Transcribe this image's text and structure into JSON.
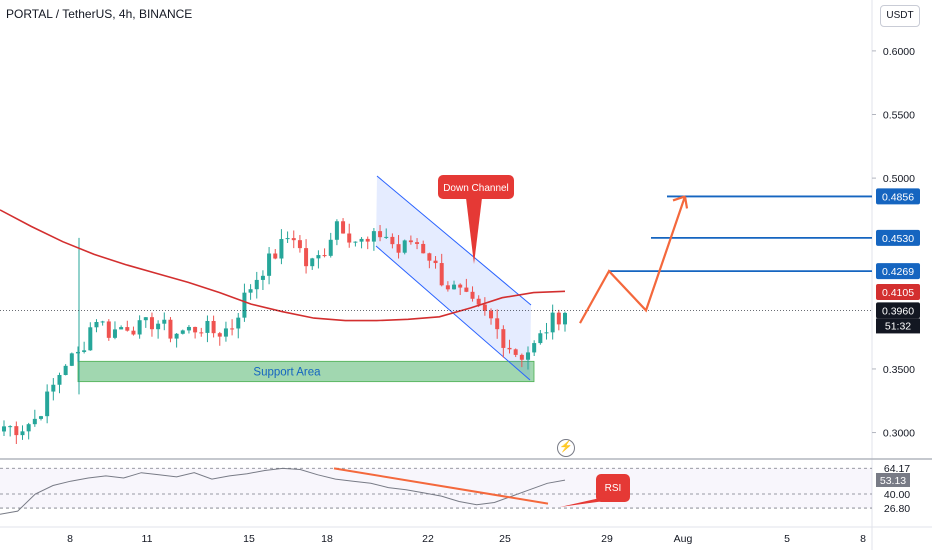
{
  "header": {
    "title": "PORTAL / TetherUS, 4h, BINANCE",
    "currency_button": "USDT"
  },
  "colors": {
    "up": "#26a69a",
    "down": "#ef5350",
    "ma": "#d32f2f",
    "channel": "#2962ff",
    "support": "#81c995",
    "target_line": "#1565c0",
    "projection": "#f4683c",
    "rsi": "#787b86",
    "callout": "#e53935"
  },
  "chart_data": {
    "type": "candlestick",
    "price_axis": {
      "ticks": [
        "0.6000",
        "0.5500",
        "0.5000",
        "0.3500",
        "0.3000"
      ],
      "tick_values": [
        0.6,
        0.55,
        0.5,
        0.35,
        0.3
      ],
      "ylim": [
        0.28,
        0.64
      ]
    },
    "time_axis": {
      "labels": [
        "8",
        "11",
        "15",
        "18",
        "22",
        "25",
        "29",
        "Aug",
        "5",
        "8"
      ]
    },
    "candles_anchor_close": [
      0.305,
      0.303,
      0.31,
      0.33,
      0.355,
      0.362,
      0.392,
      0.378,
      0.385,
      0.382,
      0.388,
      0.378,
      0.38,
      0.383,
      0.378,
      0.383,
      0.41,
      0.428,
      0.442,
      0.458,
      0.43,
      0.44,
      0.468,
      0.452,
      0.448,
      0.458,
      0.442,
      0.452,
      0.44,
      0.418,
      0.41,
      0.398,
      0.39,
      0.372,
      0.36,
      0.368,
      0.386,
      0.396
    ],
    "moving_average": [
      0.475,
      0.462,
      0.45,
      0.44,
      0.432,
      0.425,
      0.418,
      0.41,
      0.401,
      0.395,
      0.39,
      0.388,
      0.388,
      0.389,
      0.391,
      0.398,
      0.406,
      0.41,
      0.411
    ],
    "price_labels": [
      {
        "value": "0.4856",
        "kind": "target"
      },
      {
        "value": "0.4530",
        "kind": "target"
      },
      {
        "value": "0.4269",
        "kind": "target"
      },
      {
        "value": "0.4105",
        "kind": "ma"
      },
      {
        "value": "0.3960",
        "kind": "last"
      }
    ],
    "countdown": "51:32",
    "target_levels": [
      0.4856,
      0.453,
      0.4269
    ],
    "projection_path": [
      [
        0.386,
        0
      ],
      [
        0.4269,
        1
      ],
      [
        0.396,
        2
      ],
      [
        0.4856,
        3
      ]
    ],
    "support_area": {
      "label": "Support Area",
      "low": 0.34,
      "high": 0.356
    },
    "down_channel": {
      "label": "Down Channel"
    },
    "rsi": {
      "label": "RSI",
      "levels": [
        "64.17",
        "53.13",
        "40.00",
        "26.80"
      ],
      "current": "53.13",
      "values": [
        21,
        24,
        40,
        48,
        52,
        55,
        57,
        55,
        60,
        58,
        56,
        60,
        54,
        57,
        59,
        62,
        64,
        63,
        58,
        54,
        52,
        50,
        46,
        44,
        41,
        38,
        33,
        30,
        32,
        38,
        44,
        50,
        53
      ]
    }
  }
}
